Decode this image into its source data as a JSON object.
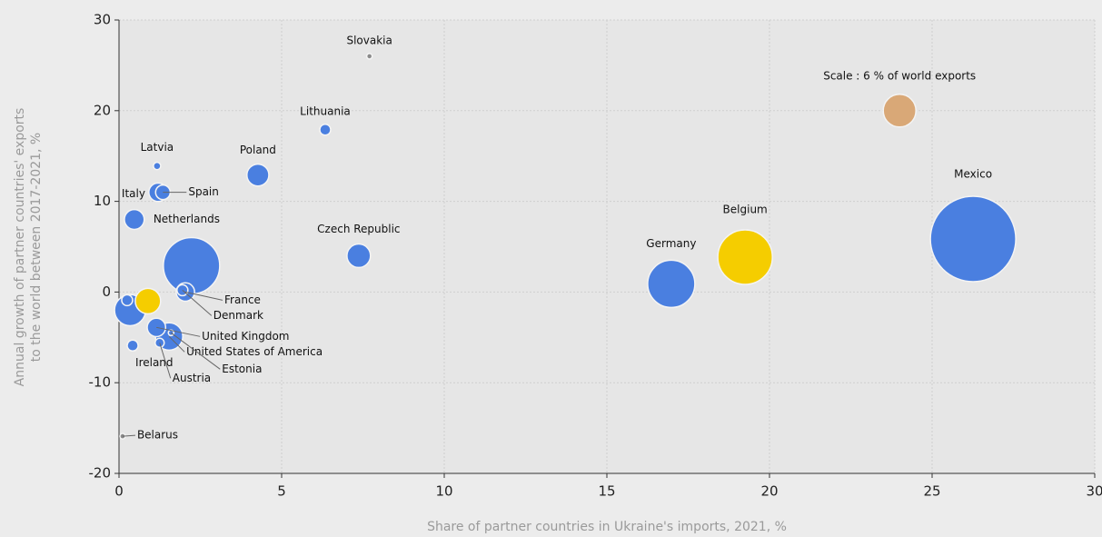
{
  "chart_data": {
    "type": "bubble",
    "xlabel": "Share of partner countries in Ukraine's imports, 2021, %",
    "ylabel": [
      "Annual growth of partner countries' exports",
      "to the world between 2017-2021, %"
    ],
    "xlim": [
      0,
      30
    ],
    "xticks": [
      0,
      5,
      10,
      15,
      20,
      25,
      30
    ],
    "ylim": [
      -20,
      30
    ],
    "yticks": [
      -20,
      -10,
      0,
      10,
      20,
      30
    ],
    "grid": true,
    "points": [
      {
        "label": "Slovakia",
        "x": 7.7,
        "y": 26,
        "size": 0.17,
        "color": "#8a8a8a"
      },
      {
        "label": "Lithuania",
        "x": 6.34,
        "y": 17.9,
        "size": 0.67,
        "color": "#4a7fe0"
      },
      {
        "label": "Latvia",
        "x": 1.17,
        "y": 13.9,
        "size": 0.3,
        "color": "#4a7fe0"
      },
      {
        "label": "Poland",
        "x": 4.27,
        "y": 12.9,
        "size": 2.7,
        "color": "#4a7fe0"
      },
      {
        "label": "Italy",
        "x": 1.2,
        "y": 11,
        "size": 1.9,
        "color": "#4a7fe0"
      },
      {
        "label": "Spain",
        "x": 1.35,
        "y": 11,
        "size": 1.2,
        "color": "#4a7fe0"
      },
      {
        "label": "Netherlands",
        "x": 0.47,
        "y": 8,
        "size": 2.2,
        "color": "#4a7fe0"
      },
      {
        "label": "Czech Republic",
        "x": 7.37,
        "y": 4,
        "size": 3.1,
        "color": "#4a7fe0"
      },
      {
        "label": "Germany",
        "x": 16.98,
        "y": 0.9,
        "size": 12.5,
        "color": "#4a7fe0"
      },
      {
        "label": "Belgium",
        "x": 19.25,
        "y": 3.85,
        "size": 16.7,
        "color": "#f5cd00"
      },
      {
        "label": "Mexico",
        "x": 26.26,
        "y": 5.85,
        "size": 40.9,
        "color": "#4a7fe0"
      },
      {
        "label": "Scale : 6 % of world exports",
        "x": 24,
        "y": 20,
        "size": 6,
        "color": "#d9a877"
      },
      {
        "label": null,
        "x": 2.23,
        "y": 2.9,
        "size": 17.8,
        "color": "#4a7fe0"
      },
      {
        "label": "France",
        "x": 2.04,
        "y": 0,
        "size": 1.9,
        "color": "#4a7fe0"
      },
      {
        "label": "Denmark",
        "x": 1.95,
        "y": 0.2,
        "size": 0.67,
        "color": "#4a7fe0"
      },
      {
        "label": null,
        "x": 0.89,
        "y": -1,
        "size": 3.6,
        "color": "#f5cd00"
      },
      {
        "label": null,
        "x": 0.34,
        "y": -2,
        "size": 5.4,
        "color": "#4a7fe0"
      },
      {
        "label": null,
        "x": 0.25,
        "y": -0.9,
        "size": 0.67,
        "color": "#4a7fe0"
      },
      {
        "label": "United Kingdom",
        "x": 1.15,
        "y": -3.9,
        "size": 1.9,
        "color": "#4a7fe0"
      },
      {
        "label": "United States of America",
        "x": 1.54,
        "y": -4.9,
        "size": 4.2,
        "color": "#4a7fe0"
      },
      {
        "label": "Estonia",
        "x": 1.6,
        "y": -4.5,
        "size": 0.17,
        "color": "#4a7fe0"
      },
      {
        "label": "Ireland",
        "x": 0.42,
        "y": -5.9,
        "size": 0.67,
        "color": "#4a7fe0"
      },
      {
        "label": "Austria",
        "x": 1.25,
        "y": -5.6,
        "size": 0.46,
        "color": "#4a7fe0"
      },
      {
        "label": "Belarus",
        "x": 0.11,
        "y": -15.9,
        "size": 0.17,
        "color": "#8a8a8a"
      }
    ]
  }
}
